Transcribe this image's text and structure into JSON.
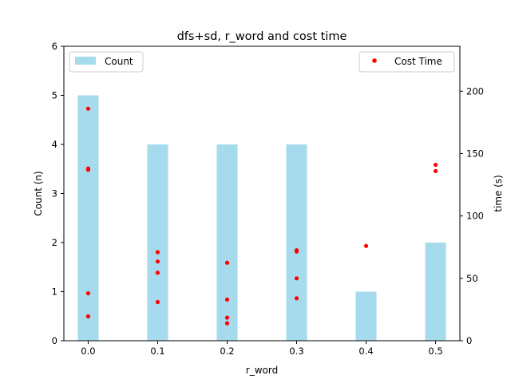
{
  "chart_data": {
    "type": "bar",
    "title": "dfs+sd, r_word and cost time",
    "xlabel": "r_word",
    "ylabel_left": "Count (n)",
    "ylabel_right": "time (s)",
    "x_ticks": [
      "0.0",
      "0.1",
      "0.2",
      "0.3",
      "0.4",
      "0.5"
    ],
    "y_left_ticks": [
      "0",
      "1",
      "2",
      "3",
      "4",
      "5",
      "6"
    ],
    "y_right_ticks": [
      "0",
      "50",
      "100",
      "150",
      "200"
    ],
    "y_left_lim": [
      0,
      6
    ],
    "y_right_lim": [
      0,
      236
    ],
    "x_lim": [
      -0.035,
      0.535
    ],
    "grid": false,
    "bar_series": {
      "name": "Count",
      "color": "#a6dbee",
      "bar_width": 0.03,
      "x": [
        0.0,
        0.1,
        0.2,
        0.3,
        0.4,
        0.5
      ],
      "values": [
        5,
        4,
        4,
        4,
        1,
        2
      ]
    },
    "scatter_series": {
      "name": "Cost Time",
      "color": "#ff0000",
      "points": [
        {
          "x": 0.0,
          "y": 186
        },
        {
          "x": 0.0,
          "y": 138
        },
        {
          "x": 0.0,
          "y": 137
        },
        {
          "x": 0.0,
          "y": 38
        },
        {
          "x": 0.0,
          "y": 19.5
        },
        {
          "x": 0.1,
          "y": 71
        },
        {
          "x": 0.1,
          "y": 63.5
        },
        {
          "x": 0.1,
          "y": 54.5
        },
        {
          "x": 0.1,
          "y": 31
        },
        {
          "x": 0.2,
          "y": 62.5
        },
        {
          "x": 0.2,
          "y": 33
        },
        {
          "x": 0.2,
          "y": 18.5
        },
        {
          "x": 0.2,
          "y": 14
        },
        {
          "x": 0.3,
          "y": 72.5
        },
        {
          "x": 0.3,
          "y": 71.5
        },
        {
          "x": 0.3,
          "y": 50
        },
        {
          "x": 0.3,
          "y": 34
        },
        {
          "x": 0.4,
          "y": 76
        },
        {
          "x": 0.5,
          "y": 141
        },
        {
          "x": 0.5,
          "y": 136
        }
      ]
    },
    "legend_left": {
      "label": "Count",
      "placement": "upper-left"
    },
    "legend_right": {
      "label": "Cost Time",
      "placement": "upper-right"
    }
  }
}
